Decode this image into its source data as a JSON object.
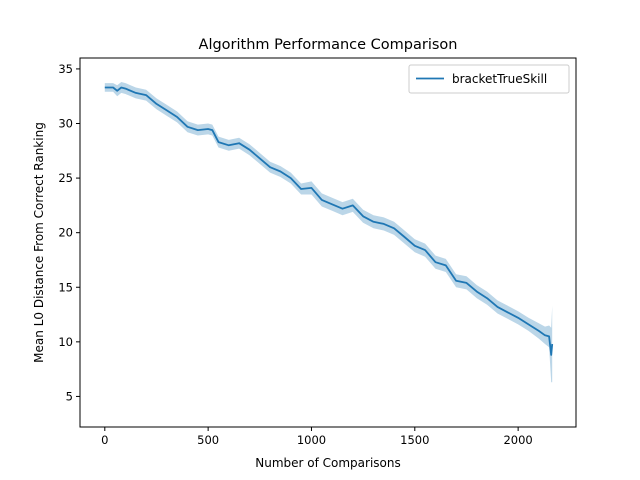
{
  "chart_data": {
    "type": "line",
    "title": "Algorithm Performance Comparison",
    "xlabel": "Number of Comparisons",
    "ylabel": "Mean L0 Distance From Correct Ranking",
    "xlim": [
      -120,
      2280
    ],
    "ylim": [
      2.2,
      36.0
    ],
    "xticks": [
      0,
      500,
      1000,
      1500,
      2000
    ],
    "yticks": [
      5,
      10,
      15,
      20,
      25,
      30,
      35
    ],
    "grid": false,
    "legend_position": "top-right",
    "series": [
      {
        "name": "bracketTrueSkill",
        "color": "#1f77b4",
        "band_color": "#1f77b4",
        "x": [
          0,
          40,
          60,
          80,
          100,
          150,
          200,
          250,
          300,
          350,
          400,
          450,
          500,
          520,
          550,
          600,
          650,
          700,
          750,
          800,
          850,
          900,
          950,
          1000,
          1050,
          1100,
          1150,
          1200,
          1250,
          1300,
          1350,
          1400,
          1450,
          1500,
          1550,
          1600,
          1650,
          1700,
          1750,
          1800,
          1850,
          1900,
          1950,
          2000,
          2050,
          2100,
          2130,
          2150,
          2160,
          2165
        ],
        "y": [
          33.3,
          33.3,
          33.0,
          33.3,
          33.2,
          32.8,
          32.6,
          31.8,
          31.2,
          30.6,
          29.7,
          29.4,
          29.5,
          29.4,
          28.3,
          28.0,
          28.2,
          27.6,
          26.8,
          26.0,
          25.6,
          25.0,
          24.0,
          24.1,
          23.0,
          22.6,
          22.2,
          22.5,
          21.5,
          21.0,
          20.8,
          20.4,
          19.6,
          18.8,
          18.4,
          17.3,
          17.0,
          15.6,
          15.4,
          14.6,
          14.0,
          13.2,
          12.7,
          12.2,
          11.6,
          11.0,
          10.6,
          10.5,
          8.8,
          9.8
        ],
        "band_halfwidth": [
          0.4,
          0.4,
          0.5,
          0.5,
          0.5,
          0.5,
          0.5,
          0.5,
          0.5,
          0.5,
          0.5,
          0.5,
          0.5,
          0.5,
          0.5,
          0.5,
          0.5,
          0.5,
          0.5,
          0.5,
          0.5,
          0.5,
          0.5,
          0.6,
          0.6,
          0.6,
          0.6,
          0.6,
          0.6,
          0.6,
          0.6,
          0.6,
          0.6,
          0.6,
          0.6,
          0.6,
          0.6,
          0.6,
          0.6,
          0.6,
          0.6,
          0.6,
          0.6,
          0.6,
          0.6,
          0.7,
          0.8,
          1.0,
          2.5,
          3.5
        ]
      }
    ]
  }
}
